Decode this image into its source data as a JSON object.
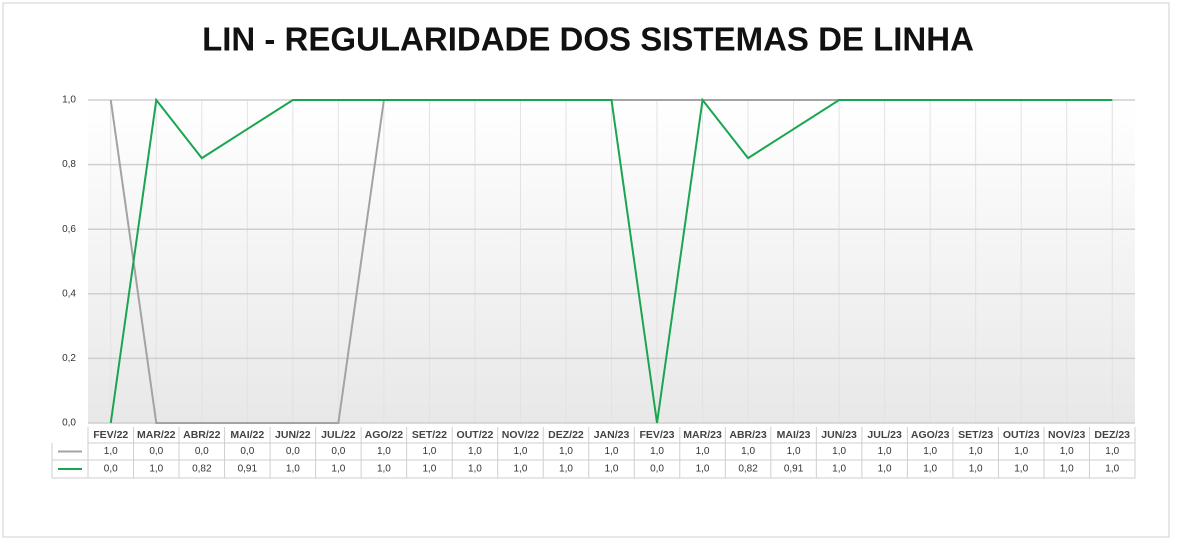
{
  "chart_data": {
    "type": "line",
    "title": "LIN - REGULARIDADE DOS SISTEMAS DE LINHA",
    "categories": [
      "FEV/22",
      "MAR/22",
      "ABR/22",
      "MAI/22",
      "JUN/22",
      "JUL/22",
      "AGO/22",
      "SET/22",
      "OUT/22",
      "NOV/22",
      "DEZ/22",
      "JAN/23",
      "FEV/23",
      "MAR/23",
      "ABR/23",
      "MAI/23",
      "JUN/23",
      "JUL/23",
      "AGO/23",
      "SET/23",
      "OUT/23",
      "NOV/23",
      "DEZ/23"
    ],
    "series": [
      {
        "color": "#a3a3a3",
        "values": [
          1.0,
          0.0,
          0.0,
          0.0,
          0.0,
          0.0,
          1.0,
          1.0,
          1.0,
          1.0,
          1.0,
          1.0,
          1.0,
          1.0,
          1.0,
          1.0,
          1.0,
          1.0,
          1.0,
          1.0,
          1.0,
          1.0,
          1.0
        ],
        "value_labels": [
          "1,0",
          "0,0",
          "0,0",
          "0,0",
          "0,0",
          "0,0",
          "1,0",
          "1,0",
          "1,0",
          "1,0",
          "1,0",
          "1,0",
          "1,0",
          "1,0",
          "1,0",
          "1,0",
          "1,0",
          "1,0",
          "1,0",
          "1,0",
          "1,0",
          "1,0",
          "1,0"
        ]
      },
      {
        "color": "#1aa650",
        "values": [
          0.0,
          1.0,
          0.82,
          0.91,
          1.0,
          1.0,
          1.0,
          1.0,
          1.0,
          1.0,
          1.0,
          1.0,
          0.0,
          1.0,
          0.82,
          0.91,
          1.0,
          1.0,
          1.0,
          1.0,
          1.0,
          1.0,
          1.0
        ],
        "value_labels": [
          "0,0",
          "1,0",
          "0,82",
          "0,91",
          "1,0",
          "1,0",
          "1,0",
          "1,0",
          "1,0",
          "1,0",
          "1,0",
          "1,0",
          "0,0",
          "1,0",
          "0,82",
          "0,91",
          "1,0",
          "1,0",
          "1,0",
          "1,0",
          "1,0",
          "1,0",
          "1,0"
        ]
      }
    ],
    "ylim": [
      0,
      1
    ],
    "yticks": [
      {
        "value": 0,
        "label": "0,0"
      },
      {
        "value": 0.2,
        "label": "0,2"
      },
      {
        "value": 0.4,
        "label": "0,4"
      },
      {
        "value": 0.6,
        "label": "0,6"
      },
      {
        "value": 0.8,
        "label": "0,8"
      },
      {
        "value": 1,
        "label": "1,0"
      }
    ],
    "grid": true
  }
}
